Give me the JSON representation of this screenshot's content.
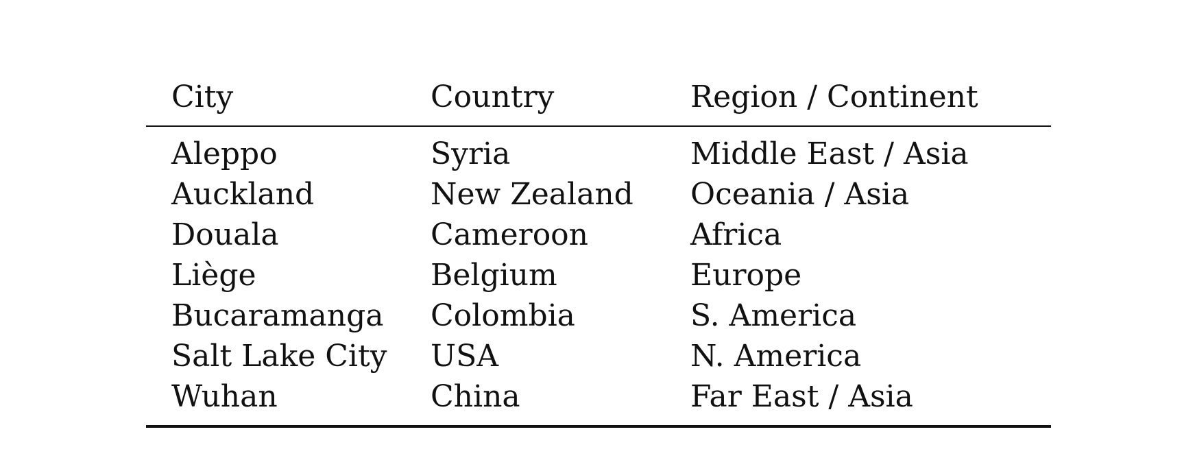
{
  "table": {
    "headers": [
      "City",
      "Country",
      "Region / Continent"
    ],
    "rows": [
      [
        "Aleppo",
        "Syria",
        "Middle East / Asia"
      ],
      [
        "Auckland",
        "New Zealand",
        "Oceania / Asia"
      ],
      [
        "Douala",
        "Cameroon",
        "Africa"
      ],
      [
        "Liège",
        "Belgium",
        "Europe"
      ],
      [
        "Bucaramanga",
        "Colombia",
        "S. America"
      ],
      [
        "Salt Lake City",
        "USA",
        "N. America"
      ],
      [
        "Wuhan",
        "China",
        "Far East / Asia"
      ]
    ]
  }
}
